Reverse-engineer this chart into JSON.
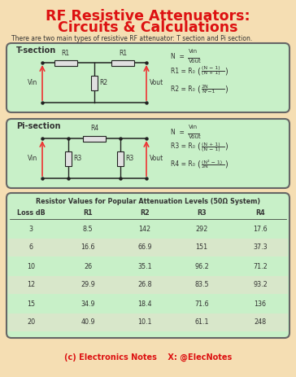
{
  "title_line1": "RF Resistive Attenuators:",
  "title_line2": "Circuits & Calculations",
  "title_color": "#DD1111",
  "bg_color": "#F5DEB3",
  "section_bg": "#C8F0C8",
  "section_border": "#666666",
  "subtitle": "There are two main types of resistive RF attenuator: T section and Pi section.",
  "t_section_label": "T-section",
  "pi_section_label": "Pi-section",
  "table_title": "Resistor Values for Popular Attenuation Levels (50Ω System)",
  "table_headers": [
    "Loss dB",
    "R1",
    "R2",
    "R3",
    "R4"
  ],
  "table_data": [
    [
      "3",
      "8.5",
      "142",
      "292",
      "17.6"
    ],
    [
      "6",
      "16.6",
      "66.9",
      "151",
      "37.3"
    ],
    [
      "10",
      "26",
      "35.1",
      "96.2",
      "71.2"
    ],
    [
      "12",
      "29.9",
      "26.8",
      "83.5",
      "93.2"
    ],
    [
      "15",
      "34.9",
      "18.4",
      "71.6",
      "136"
    ],
    [
      "20",
      "40.9",
      "10.1",
      "61.1",
      "248"
    ]
  ],
  "footer": "(c) Electronics Notes    X: @ElecNotes",
  "footer_color": "#DD1111",
  "red_arrow": "#EE3333",
  "wire_color": "#222222",
  "text_dark": "#333333",
  "row_alt_color": "#E8E0CC"
}
